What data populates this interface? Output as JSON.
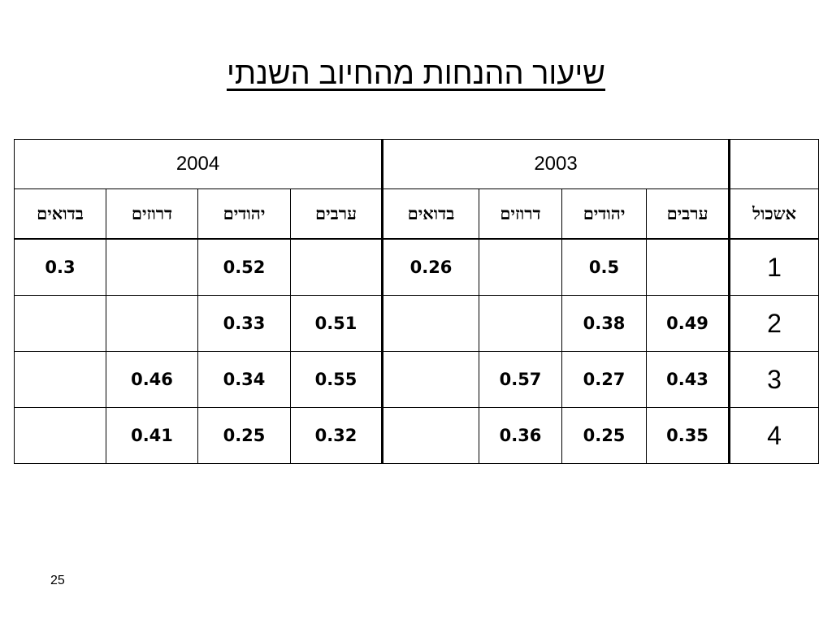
{
  "title": "שיעור ההנחות מהחיוב השנתי",
  "table": {
    "years": [
      "2003",
      "2004"
    ],
    "cluster_header": "אשכול",
    "group_headers": [
      [
        "ערבים",
        "יהודים",
        "דרוזים",
        "בדואים"
      ],
      [
        "ערבים",
        "יהודים",
        "דרוזים",
        "בדואים"
      ]
    ],
    "rows": [
      {
        "cluster": 1,
        "groups": [
          [
            null,
            0.5,
            null,
            0.26
          ],
          [
            null,
            0.52,
            null,
            0.3
          ]
        ]
      },
      {
        "cluster": 2,
        "groups": [
          [
            0.49,
            0.38,
            null,
            null
          ],
          [
            0.51,
            0.33,
            null,
            null
          ]
        ]
      },
      {
        "cluster": 3,
        "groups": [
          [
            0.43,
            0.27,
            0.57,
            null
          ],
          [
            0.55,
            0.34,
            0.46,
            null
          ]
        ]
      },
      {
        "cluster": 4,
        "groups": [
          [
            0.35,
            0.25,
            0.36,
            null
          ],
          [
            0.32,
            0.25,
            0.41,
            null
          ]
        ]
      }
    ]
  },
  "page_number": "25"
}
